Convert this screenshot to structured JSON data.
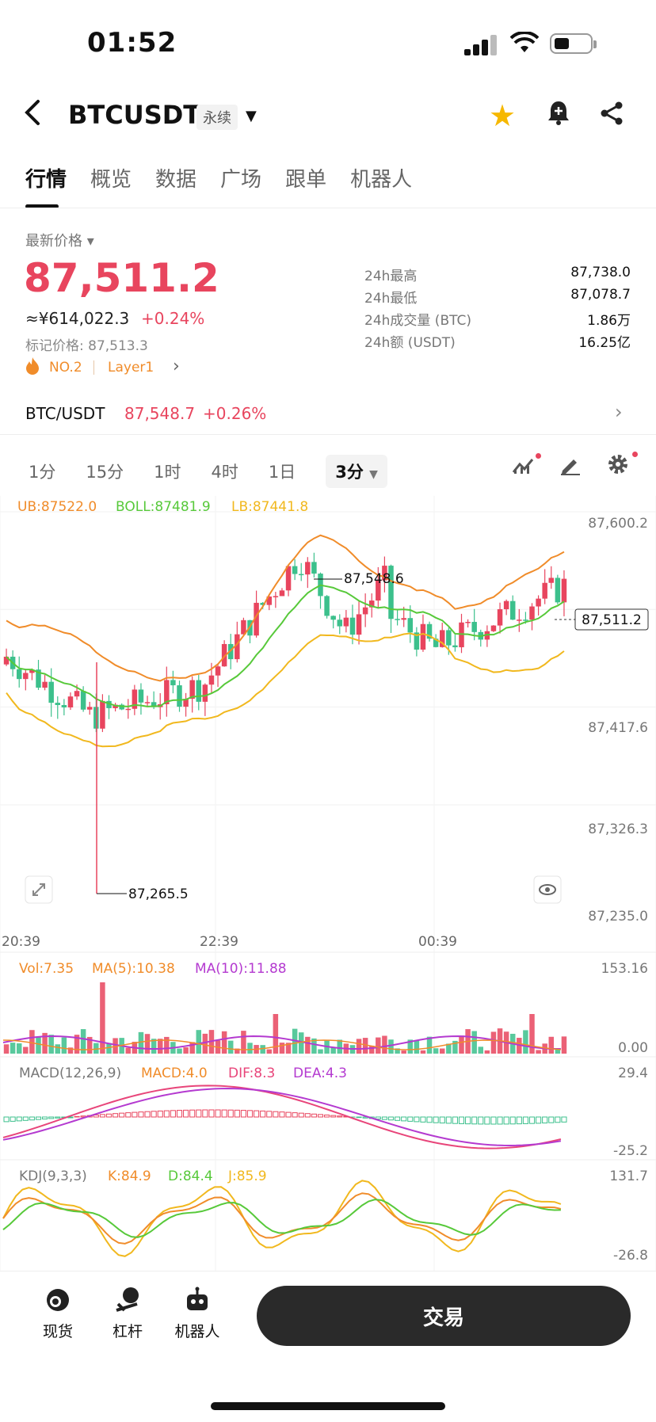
{
  "status": {
    "time": "01:52"
  },
  "header": {
    "pair": "BTCUSDT",
    "contract_type": "永续"
  },
  "tabs": [
    "行情",
    "概览",
    "数据",
    "广场",
    "跟单",
    "机器人"
  ],
  "price": {
    "latest_label": "最新价格",
    "last": "87,511.2",
    "cny": "≈¥614,022.3",
    "change": "+0.24%",
    "mark": "标记价格: 87,513.3",
    "rank": "NO.2",
    "tag": "Layer1"
  },
  "stats": [
    {
      "label": "24h最高",
      "value": "87,738.0"
    },
    {
      "label": "24h最低",
      "value": "87,078.7"
    },
    {
      "label": "24h成交量 (BTC)",
      "value": "1.86万"
    },
    {
      "label": "24h额 (USDT)",
      "value": "16.25亿"
    }
  ],
  "spot": {
    "pair": "BTC/USDT",
    "price": "87,548.7",
    "change": "+0.26%"
  },
  "intervals": [
    "1分",
    "15分",
    "1时",
    "4时",
    "1日",
    "3分"
  ],
  "chart_data": {
    "type": "candlestick",
    "boll": {
      "ub": "UB:87522.0",
      "boll": "BOLL:87481.9",
      "lb": "LB:87441.8"
    },
    "price_ticks": [
      "87,600.2",
      "87,417.6",
      "87,326.3",
      "87,235.0"
    ],
    "price_range": [
      87235.0,
      87600.2
    ],
    "current_price": "87,511.2",
    "high_marker": "87,548.6",
    "low_marker": "87,265.5",
    "time_ticks": [
      "20:39",
      "22:39",
      "00:39"
    ],
    "volume": {
      "vol": "Vol:7.35",
      "ma5": "MA(5):10.38",
      "ma10": "MA(10):11.88",
      "max": "153.16",
      "min": "0.00"
    },
    "macd": {
      "label": "MACD(12,26,9)",
      "macd": "MACD:4.0",
      "dif": "DIF:8.3",
      "dea": "DEA:4.3",
      "max": "29.4",
      "min": "-25.2"
    },
    "kdj": {
      "label": "KDJ(9,3,3)",
      "k": "K:84.9",
      "d": "D:84.4",
      "j": "J:85.9",
      "max": "131.7",
      "min": "-26.8"
    },
    "colors": {
      "up": "#e8455e",
      "down": "#3cc08c",
      "ub": "#f08c2a",
      "boll": "#57c93a",
      "lb": "#f1b81e",
      "ma10": "#b43ad0",
      "dif": "#e8457a"
    }
  },
  "bottom_nav": [
    {
      "label": "现货",
      "icon": "spot-icon"
    },
    {
      "label": "杠杆",
      "icon": "margin-icon"
    },
    {
      "label": "机器人",
      "icon": "robot-icon"
    }
  ],
  "trade_button": "交易"
}
